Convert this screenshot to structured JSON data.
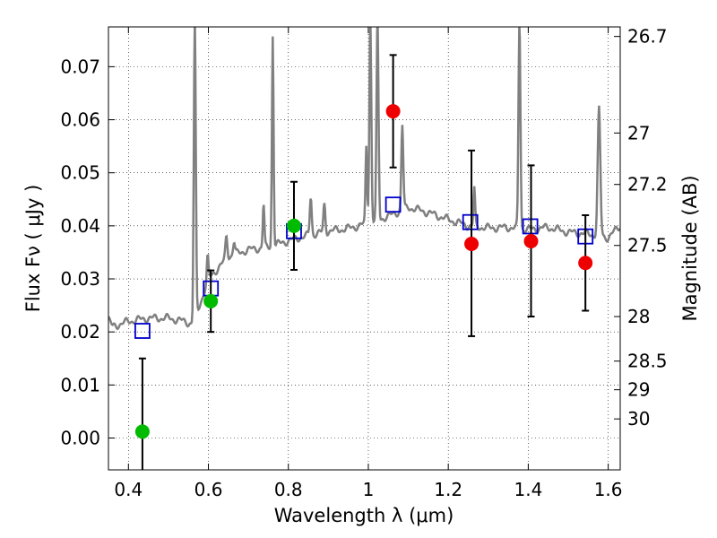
{
  "chart_data": {
    "type": "scatter",
    "xlabel": "Wavelength  λ (μm)",
    "ylabel": "Flux  Fν  ( μJy )",
    "ylabel_right": "Magnitude (AB)",
    "xlim": [
      0.35,
      1.63
    ],
    "ylim": [
      -0.006,
      0.0775
    ],
    "x_ticks": [
      0.4,
      0.6,
      0.8,
      1.0,
      1.2,
      1.4,
      1.6
    ],
    "x_tick_labels": [
      "0.4",
      "0.6",
      "0.8",
      "1",
      "1.2",
      "1.4",
      "1.6"
    ],
    "y_ticks": [
      0.0,
      0.01,
      0.02,
      0.03,
      0.04,
      0.05,
      0.06,
      0.07
    ],
    "y_tick_labels": [
      "0.00",
      "0.01",
      "0.02",
      "0.03",
      "0.04",
      "0.05",
      "0.06",
      "0.07"
    ],
    "right_ticks": [
      {
        "flux": 0.0757,
        "label": "26.7"
      },
      {
        "flux": 0.0575,
        "label": "27"
      },
      {
        "flux": 0.0478,
        "label": "27.2"
      },
      {
        "flux": 0.0363,
        "label": "27.5"
      },
      {
        "flux": 0.0229,
        "label": "28"
      },
      {
        "flux": 0.0145,
        "label": "28.5"
      },
      {
        "flux": 0.0091,
        "label": "29"
      },
      {
        "flux": 0.0036,
        "label": "30"
      }
    ],
    "grid": true,
    "colors": {
      "spectrum": "#808080",
      "model": "#0000cc",
      "green": "#00bb00",
      "red": "#ee0000",
      "errorbar": "#000000"
    },
    "model_points": [
      {
        "x": 0.435,
        "y": 0.0202
      },
      {
        "x": 0.606,
        "y": 0.0282
      },
      {
        "x": 0.814,
        "y": 0.039
      },
      {
        "x": 1.062,
        "y": 0.044
      },
      {
        "x": 1.255,
        "y": 0.0407
      },
      {
        "x": 1.405,
        "y": 0.0399
      },
      {
        "x": 1.543,
        "y": 0.038
      }
    ],
    "observed_points": [
      {
        "x": 0.435,
        "y": 0.0012,
        "err_low": 0.014,
        "err_high": 0.0138,
        "color": "green"
      },
      {
        "x": 0.606,
        "y": 0.0258,
        "err_low": 0.0058,
        "err_high": 0.0058,
        "color": "green"
      },
      {
        "x": 0.814,
        "y": 0.04,
        "err_low": 0.0083,
        "err_high": 0.0083,
        "color": "green"
      },
      {
        "x": 1.062,
        "y": 0.0616,
        "err_low": 0.0106,
        "err_high": 0.0106,
        "color": "red"
      },
      {
        "x": 1.258,
        "y": 0.0366,
        "err_low": 0.0174,
        "err_high": 0.0176,
        "color": "red"
      },
      {
        "x": 1.407,
        "y": 0.0371,
        "err_low": 0.0142,
        "err_high": 0.0143,
        "color": "red"
      },
      {
        "x": 1.543,
        "y": 0.033,
        "err_low": 0.009,
        "err_high": 0.009,
        "color": "red"
      }
    ],
    "spectrum_continuum": [
      [
        0.35,
        0.0225
      ],
      [
        0.36,
        0.021
      ],
      [
        0.38,
        0.0215
      ],
      [
        0.4,
        0.022
      ],
      [
        0.45,
        0.0226
      ],
      [
        0.5,
        0.0226
      ],
      [
        0.54,
        0.022
      ],
      [
        0.56,
        0.0215
      ],
      [
        0.57,
        0.0232
      ],
      [
        0.6,
        0.03
      ],
      [
        0.65,
        0.0342
      ],
      [
        0.7,
        0.0355
      ],
      [
        0.75,
        0.036
      ],
      [
        0.8,
        0.0372
      ],
      [
        0.85,
        0.0382
      ],
      [
        0.9,
        0.039
      ],
      [
        0.95,
        0.0395
      ],
      [
        1.0,
        0.0405
      ],
      [
        1.05,
        0.0418
      ],
      [
        1.1,
        0.0435
      ],
      [
        1.15,
        0.0425
      ],
      [
        1.2,
        0.0412
      ],
      [
        1.25,
        0.04
      ],
      [
        1.3,
        0.0396
      ],
      [
        1.35,
        0.0397
      ],
      [
        1.4,
        0.0393
      ],
      [
        1.45,
        0.0397
      ],
      [
        1.5,
        0.0388
      ],
      [
        1.55,
        0.0385
      ],
      [
        1.6,
        0.0378
      ],
      [
        1.63,
        0.04
      ]
    ],
    "spectrum_lines": [
      {
        "x": 0.566,
        "peak": 0.079,
        "width": 0.006
      },
      {
        "x": 0.598,
        "peak": 0.034,
        "width": 0.005
      },
      {
        "x": 0.645,
        "peak": 0.038,
        "width": 0.006
      },
      {
        "x": 0.664,
        "peak": 0.037,
        "width": 0.006
      },
      {
        "x": 0.738,
        "peak": 0.044,
        "width": 0.005
      },
      {
        "x": 0.761,
        "peak": 0.076,
        "width": 0.005
      },
      {
        "x": 0.856,
        "peak": 0.0455,
        "width": 0.006
      },
      {
        "x": 0.89,
        "peak": 0.044,
        "width": 0.006
      },
      {
        "x": 0.995,
        "peak": 0.055,
        "width": 0.005
      },
      {
        "x": 1.005,
        "peak": 0.079,
        "width": 0.006
      },
      {
        "x": 1.023,
        "peak": 0.079,
        "width": 0.006
      },
      {
        "x": 1.085,
        "peak": 0.059,
        "width": 0.006
      },
      {
        "x": 1.265,
        "peak": 0.047,
        "width": 0.005
      },
      {
        "x": 1.378,
        "peak": 0.079,
        "width": 0.006
      },
      {
        "x": 1.577,
        "peak": 0.062,
        "width": 0.008
      }
    ]
  }
}
